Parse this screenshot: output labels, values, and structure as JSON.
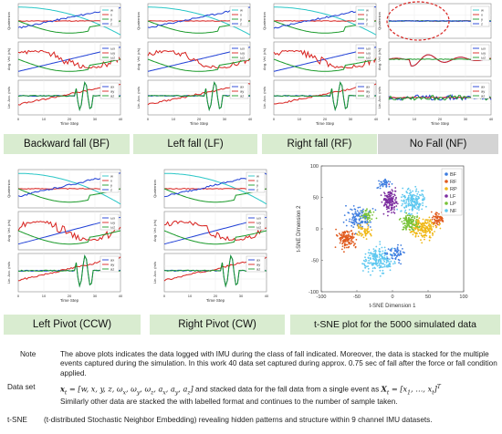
{
  "panel_labels": {
    "quaternion": "Quaternion",
    "angvel": "Ang. Vel. (r/s)",
    "linacc": "Lin. Acc. (m/s",
    "xlabel": "Time Step"
  },
  "legends": {
    "quat": [
      "w",
      "x",
      "y",
      "z"
    ],
    "angvel": [
      "ω",
      "ω",
      "ω"
    ],
    "angvel_sub": [
      "x",
      "y",
      "z"
    ],
    "acc": [
      "a",
      "a",
      "a"
    ],
    "acc_sub": [
      "x",
      "y",
      "z"
    ]
  },
  "x_ticks": [
    "0",
    "10",
    "20",
    "30",
    "40"
  ],
  "captions": {
    "bf": "Backward fall (BF)",
    "lf": "Left fall (LF)",
    "rf": "Right fall (RF)",
    "nf": "No Fall (NF)",
    "ccw": "Left Pivot (CCW)",
    "cw": "Right Pivot (CW)",
    "tsne": "t-SNE plot for the 5000 simulated data"
  },
  "tsne": {
    "ylabel": "t-SNE Dimension 2",
    "xlabel": "t-SNE Dimension 1",
    "x_ticks": [
      "-100",
      "-50",
      "0",
      "50",
      "100"
    ],
    "y_ticks": [
      "-100",
      "-50",
      "0",
      "50",
      "100"
    ],
    "legend": [
      {
        "label": "BF",
        "color": "#3e7de0"
      },
      {
        "label": "RF",
        "color": "#e05a1e"
      },
      {
        "label": "RP",
        "color": "#f0b818"
      },
      {
        "label": "LF",
        "color": "#7d2fa0"
      },
      {
        "label": "LP",
        "color": "#78c238"
      },
      {
        "label": "NF",
        "color": "#5ec8f0"
      }
    ]
  },
  "notes": {
    "note_key": "Note",
    "note_text": "The above plots indicates the data logged with IMU during the class of fall indicated. Moreover, the data is stacked for the multiple events captured during the simulation. In this work 40 data set captured during approx. 0.75 sec of fall after the force or fall condition applied.",
    "dataset_key": "Data set",
    "dataset_formula1": "x",
    "dataset_formula1_sub": "t",
    "dataset_formula1_rest": " = [w, x, y, z, ω",
    "dataset_formula1_tail": "]",
    "dataset_text_mid": " and stacked data for the fall data from a single event as ",
    "dataset_formula2": "X",
    "dataset_formula2_rest": " = [x",
    "dataset_formula2_tail": "]",
    "dataset_T": "T",
    "similar_text": "Similarly other data are stacked the with labelled format and continues to the number of sample taken.",
    "tsne_key": "t-SNE",
    "tsne_text": "(t-distributed Stochastic Neighbor Embedding) revealing hidden patterns and structure within 9 channel IMU datasets."
  }
}
